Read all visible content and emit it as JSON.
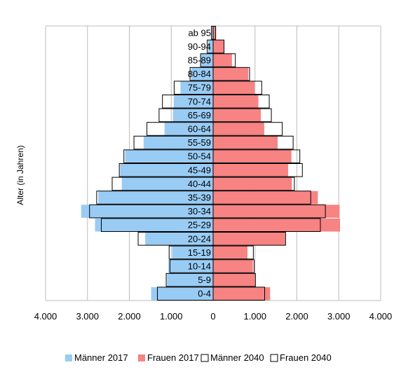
{
  "chart_data": {
    "type": "bar",
    "orientation": "horizontal-population-pyramid",
    "ylabel": "Alter (in Jahren)",
    "xlabel": "",
    "xlim": [
      -4000,
      4000
    ],
    "x_ticks": [
      -4000,
      -3000,
      -2000,
      -1000,
      0,
      1000,
      2000,
      3000,
      4000
    ],
    "x_tick_labels": [
      "4.000",
      "3.000",
      "2.000",
      "1.000",
      "0",
      "1.000",
      "2.000",
      "3.000",
      "4.000"
    ],
    "grid": "vertical",
    "legend_position": "bottom",
    "categories": [
      "0-4",
      "5-9",
      "10-14",
      "15-19",
      "20-24",
      "25-29",
      "30-34",
      "35-39",
      "40-44",
      "45-49",
      "50-54",
      "55-59",
      "60-64",
      "65-69",
      "70-74",
      "75-79",
      "80-84",
      "85-89",
      "90-94",
      "ab 95"
    ],
    "series": [
      {
        "name": "Männer 2017",
        "side": "left",
        "style": "filled",
        "color": "#99ccf5",
        "values": [
          1480,
          1100,
          1070,
          980,
          1620,
          2820,
          3150,
          2740,
          2180,
          2220,
          2100,
          1660,
          1160,
          960,
          940,
          780,
          520,
          290,
          120,
          30
        ]
      },
      {
        "name": "Frauen 2017",
        "side": "right",
        "style": "filled",
        "color": "#f78383",
        "values": [
          1360,
          1000,
          950,
          820,
          1720,
          3030,
          3020,
          2500,
          1880,
          1790,
          1870,
          1540,
          1220,
          1140,
          1080,
          990,
          840,
          450,
          250,
          70
        ]
      },
      {
        "name": "Männer 2040",
        "side": "left",
        "style": "outline",
        "color": "#000000",
        "values": [
          1330,
          1120,
          1030,
          1050,
          1790,
          2670,
          2950,
          2780,
          2410,
          2240,
          2130,
          1890,
          1580,
          1290,
          1210,
          930,
          550,
          300,
          140,
          40
        ]
      },
      {
        "name": "Frauen 2040",
        "side": "right",
        "style": "outline",
        "color": "#000000",
        "values": [
          1230,
          1010,
          980,
          960,
          1730,
          2560,
          2680,
          2330,
          1940,
          2130,
          2070,
          1910,
          1650,
          1390,
          1340,
          1160,
          870,
          530,
          260,
          60
        ]
      }
    ]
  }
}
